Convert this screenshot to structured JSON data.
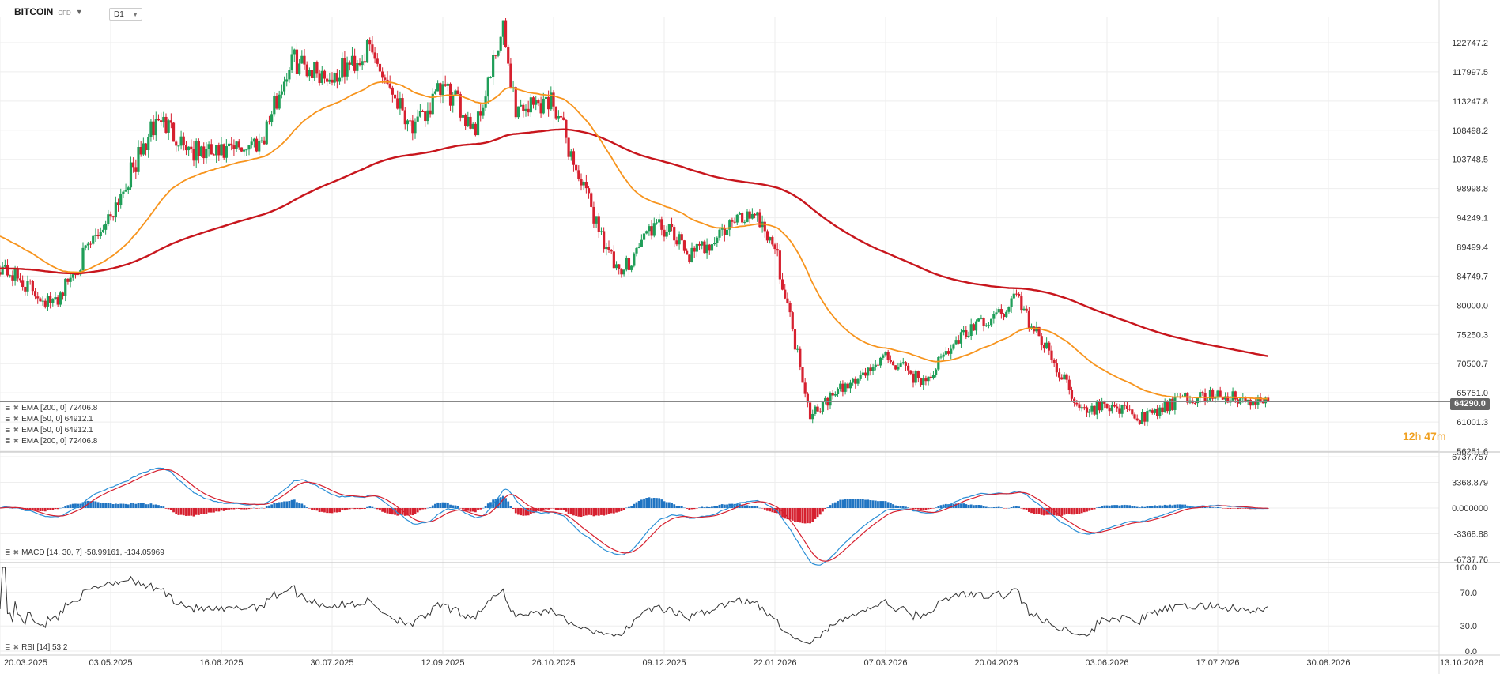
{
  "header": {
    "symbol": "BITCOIN",
    "instrument_type": "CFD",
    "timeframe": "D1"
  },
  "price_tag": "64290.0",
  "countdown": {
    "hours": "12",
    "hours_unit": "h",
    "minutes": "47",
    "minutes_unit": "m"
  },
  "legend": {
    "ema_lines": [
      "EMA [200, 0] 72406.8",
      "EMA [50, 0] 64912.1",
      "EMA [50, 0] 64912.1",
      "EMA [200, 0] 72406.8"
    ],
    "macd": "MACD [14, 30, 7] -58.99161, -134.05969",
    "rsi": "RSI [14] 53.2"
  },
  "colors": {
    "bull": "#1f9e58",
    "bear": "#d6202f",
    "ema50": "#f7941d",
    "ema200": "#c8161d",
    "macd_line": "#2b8fd6",
    "signal_line": "#d6202f",
    "hist_pos": "#1f74c2",
    "hist_neg": "#d6202f",
    "rsi_line": "#333333",
    "grid": "#eeeeee"
  },
  "chart_data": [
    {
      "type": "candlestick",
      "title": "BITCOIN CFD D1",
      "x_range": [
        "20.03.2025",
        "13.10.2026"
      ],
      "x_ticks": [
        "20.03.2025",
        "03.05.2025",
        "16.06.2025",
        "30.07.2025",
        "12.09.2025",
        "26.10.2025",
        "09.12.2025",
        "22.01.2026",
        "07.03.2026",
        "20.04.2026",
        "03.06.2026",
        "17.07.2026",
        "30.08.2026",
        "13.10.2026"
      ],
      "y_ticks": [
        "122747.2",
        "117997.5",
        "113247.8",
        "108498.2",
        "103748.5",
        "98998.8",
        "94249.1",
        "89499.4",
        "84749.7",
        "80000.0",
        "75250.3",
        "70500.7",
        "65751.0",
        "61001.3",
        "56251.6"
      ],
      "ylim": [
        56251.6,
        122747.2
      ],
      "last_price": 64290.0,
      "close_anchors": [
        {
          "x": "20.03.2025",
          "y": 86500
        },
        {
          "x": "10.04.2025",
          "y": 80000
        },
        {
          "x": "20.04.2025",
          "y": 86500
        },
        {
          "x": "03.05.2025",
          "y": 95000
        },
        {
          "x": "22.05.2025",
          "y": 110500
        },
        {
          "x": "05.06.2025",
          "y": 105000
        },
        {
          "x": "16.06.2025",
          "y": 104500
        },
        {
          "x": "02.07.2025",
          "y": 107000
        },
        {
          "x": "14.07.2025",
          "y": 120000
        },
        {
          "x": "30.07.2025",
          "y": 117000
        },
        {
          "x": "14.08.2025",
          "y": 121500
        },
        {
          "x": "01.09.2025",
          "y": 108500
        },
        {
          "x": "12.09.2025",
          "y": 115500
        },
        {
          "x": "25.09.2025",
          "y": 109000
        },
        {
          "x": "06.10.2025",
          "y": 124500
        },
        {
          "x": "11.10.2025",
          "y": 112000
        },
        {
          "x": "26.10.2025",
          "y": 113500
        },
        {
          "x": "04.11.2025",
          "y": 102000
        },
        {
          "x": "21.11.2025",
          "y": 84500
        },
        {
          "x": "03.12.2025",
          "y": 92500
        },
        {
          "x": "09.12.2025",
          "y": 92500
        },
        {
          "x": "20.12.2025",
          "y": 88000
        },
        {
          "x": "06.01.2026",
          "y": 93500
        },
        {
          "x": "14.01.2026",
          "y": 95500
        },
        {
          "x": "22.01.2026",
          "y": 89500
        },
        {
          "x": "05.02.2026",
          "y": 62500
        },
        {
          "x": "07.03.2026",
          "y": 71500
        },
        {
          "x": "22.03.2026",
          "y": 67500
        },
        {
          "x": "07.04.2026",
          "y": 75500
        },
        {
          "x": "20.04.2026",
          "y": 78000
        },
        {
          "x": "28.04.2026",
          "y": 81500
        },
        {
          "x": "03.05.2026",
          "y": 77500
        },
        {
          "x": "25.05.2026",
          "y": 62500
        },
        {
          "x": "03.06.2026",
          "y": 64000
        },
        {
          "x": "17.06.2026",
          "y": 61500
        },
        {
          "x": "02.07.2026",
          "y": 64500
        },
        {
          "x": "17.07.2026",
          "y": 65500
        },
        {
          "x": "31.07.2026",
          "y": 64000
        },
        {
          "x": "06.08.2026",
          "y": 64290
        }
      ],
      "series": [
        {
          "name": "EMA [200, 0]",
          "value": 72406.8
        },
        {
          "name": "EMA [50, 0]",
          "value": 64912.1
        }
      ]
    },
    {
      "type": "histogram+line",
      "title": "MACD [14, 30, 7]",
      "y_ticks": [
        "6737.757",
        "3368.879",
        "0.000000",
        "-3368.88",
        "-6737.76"
      ],
      "ylim": [
        -6737.76,
        6737.757
      ],
      "values": {
        "macd": -58.99161,
        "signal": -134.05969
      }
    },
    {
      "type": "line",
      "title": "RSI [14]",
      "y_ticks": [
        "100.0",
        "70.0",
        "30.0",
        "0.0"
      ],
      "ylim": [
        0,
        100
      ],
      "last_value": 53.2
    }
  ]
}
